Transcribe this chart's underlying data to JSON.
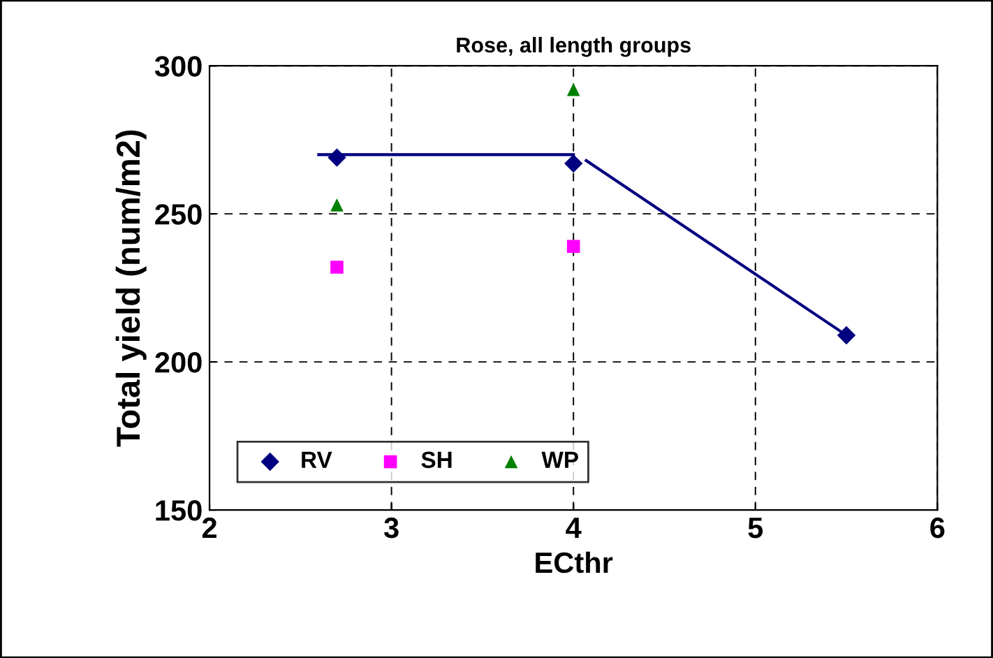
{
  "chart_data": {
    "type": "scatter",
    "title": "Rose, all length groups",
    "xlabel": "ECthr",
    "ylabel": "Total yield (num/m2)",
    "xlim": [
      2,
      6
    ],
    "xticks": [
      2,
      3,
      4,
      5,
      6
    ],
    "ylim": [
      150,
      300
    ],
    "yticks": [
      150,
      200,
      250,
      300
    ],
    "grid": true,
    "legend": "bottom left",
    "series": [
      {
        "name": "RV",
        "color": "#000080",
        "marker": "diamond",
        "x": [
          2.7,
          4.0,
          5.5
        ],
        "values": [
          269,
          267,
          209
        ]
      },
      {
        "name": "SH",
        "color": "#ff00ff",
        "marker": "square",
        "x": [
          2.7,
          4.0
        ],
        "values": [
          232,
          239
        ]
      },
      {
        "name": "WP",
        "color": "#008000",
        "marker": "triangle",
        "x": [
          2.7,
          4.0
        ],
        "values": [
          253,
          292
        ]
      },
      {
        "type": "line",
        "color": "#000080",
        "marker": "none",
        "x": [
          2.6,
          4.0,
          4.04,
          4.07,
          5.5
        ],
        "values": [
          270,
          270,
          null,
          268,
          209
        ]
      }
    ]
  }
}
